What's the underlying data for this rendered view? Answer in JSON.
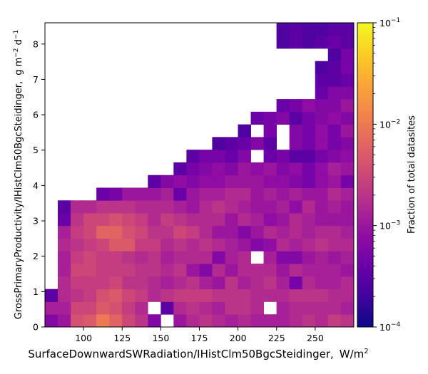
{
  "chart_data": {
    "type": "heatmap",
    "xlabel": "SurfaceDownwardSWRadiation/IHistClm50BgcSteidinger,",
    "xlabel_unit": "W/m",
    "xlabel_unit_sup": "2",
    "ylabel": "GrossPrimaryProductivity/IHistClm50BgcSteidinger,",
    "ylabel_unit": "g m",
    "ylabel_unit_sup1": "−2",
    "ylabel_unit_mid": " d",
    "ylabel_unit_sup2": "−1",
    "colorbar_label": "Fraction of total datasites",
    "colormap": "plasma",
    "color_scale": "log",
    "x_ticks": [
      100,
      125,
      150,
      175,
      200,
      225,
      250
    ],
    "x_tick_labels": [
      "100",
      "125",
      "150",
      "175",
      "200",
      "225",
      "250"
    ],
    "y_ticks": [
      0,
      1,
      2,
      3,
      4,
      5,
      6,
      7,
      8
    ],
    "y_tick_labels": [
      "0",
      "1",
      "2",
      "3",
      "4",
      "5",
      "6",
      "7",
      "8"
    ],
    "colorbar_ticks": [
      {
        "base": "10",
        "exp": "−4"
      },
      {
        "base": "10",
        "exp": "−3"
      },
      {
        "base": "10",
        "exp": "−2"
      },
      {
        "base": "10",
        "exp": "−1"
      }
    ],
    "xlim": [
      75,
      275
    ],
    "ylim": [
      0,
      8.6
    ],
    "clim": [
      0.0001,
      0.1
    ],
    "x_bin_start": 75,
    "x_bin_width": 8.33,
    "y_bin_start": 0,
    "y_bin_height": 0.358,
    "cells_note": "rows listed from bottom (row 0) to top; each value is the log10 of the fraction; null = empty bin",
    "log_values": [
      [
        -3.2,
        -3.0,
        -2.4,
        -2.3,
        -2.0,
        -2.2,
        -2.5,
        -2.7,
        -3.2,
        null,
        -3.0,
        -2.8,
        -2.7,
        -2.8,
        -2.9,
        -2.8,
        -2.9,
        -2.9,
        -2.9,
        -2.8,
        -2.7,
        -2.8,
        -2.6,
        -2.7,
        -2.8,
        -2.8,
        -2.7,
        -2.7,
        -2.8,
        -2.9,
        -2.8,
        -2.9,
        -3.0,
        -3.0,
        -2.8,
        -3.0,
        -3.2,
        -3.2
      ],
      [
        -2.9,
        -2.9,
        -2.5,
        -2.5,
        -2.3,
        -2.4,
        -2.6,
        -2.8,
        null,
        -3.5,
        -2.8,
        -2.7,
        -2.8,
        -2.9,
        -2.7,
        -2.7,
        -2.8,
        null,
        -2.9,
        -2.8,
        -2.8,
        -2.8,
        -2.8,
        -2.9,
        -2.8,
        -2.7,
        -2.7,
        -2.8,
        -2.9,
        -2.8,
        -2.9,
        -2.9,
        -2.9,
        -2.8,
        -2.7,
        -2.9,
        -3.0,
        -3.0
      ],
      [
        -3.5,
        -2.8,
        -2.7,
        -2.6,
        -2.4,
        -2.3,
        -2.5,
        -2.6,
        -2.8,
        -2.7,
        -2.6,
        -2.6,
        -2.6,
        -2.7,
        -2.7,
        -2.7,
        -2.8,
        -2.8,
        -2.8,
        -2.7,
        -2.7,
        -2.7,
        -2.8,
        -2.8,
        -2.8,
        -2.7,
        -2.6,
        -2.6,
        -2.7,
        -2.8,
        -2.8,
        -2.8,
        -2.7,
        -2.6,
        -2.6,
        -2.8,
        -2.9,
        -3.2
      ],
      [
        null,
        -2.8,
        -2.6,
        -2.6,
        -2.6,
        -2.5,
        -2.7,
        -2.7,
        -2.8,
        -2.9,
        -2.8,
        -2.7,
        -2.9,
        -3.0,
        -2.7,
        -2.9,
        -2.8,
        -2.7,
        -2.9,
        -3.3,
        -2.8,
        -2.9,
        -2.9,
        -2.8,
        -2.7,
        -2.8,
        -2.8,
        -2.8,
        -2.6,
        -2.9,
        -2.9,
        -2.7,
        -2.6,
        -2.5,
        -2.6,
        -2.7,
        -2.8,
        -3.0
      ],
      [
        null,
        -2.9,
        -2.5,
        -2.5,
        -2.6,
        -2.6,
        -2.6,
        -2.7,
        -2.7,
        -2.8,
        -2.7,
        -3.0,
        -3.2,
        -2.8,
        -3.0,
        -2.8,
        -2.8,
        -2.8,
        -3.0,
        -2.8,
        -2.9,
        -2.9,
        -2.9,
        -3.0,
        -2.8,
        -2.8,
        -3.0,
        -2.9,
        -2.7,
        -2.8,
        -2.8,
        -2.7,
        -2.6,
        -2.6,
        -2.7,
        -2.8,
        -2.9,
        -3.1
      ],
      [
        null,
        -2.9,
        -2.6,
        -2.5,
        -2.6,
        -2.6,
        -2.7,
        -2.8,
        -2.7,
        -2.9,
        -2.8,
        -2.8,
        -2.8,
        -3.2,
        -2.9,
        -2.8,
        null,
        -2.9,
        -3.2,
        -3.2,
        -3.0,
        -2.9,
        -3.0,
        -2.9,
        -2.8,
        -2.8,
        -2.7,
        -2.8,
        -2.9,
        -3.0,
        -2.7,
        -2.8,
        -2.7,
        -2.6,
        -2.7,
        -2.8,
        -3.0,
        -3.3
      ],
      [
        null,
        -2.8,
        -2.7,
        -2.6,
        -2.5,
        -2.3,
        -2.3,
        -2.6,
        -2.6,
        -2.8,
        -2.7,
        -2.8,
        -2.7,
        -2.8,
        -2.9,
        -3.0,
        -3.2,
        -3.1,
        -2.8,
        -2.9,
        -2.8,
        -2.7,
        -2.8,
        -2.8,
        -2.9,
        -2.8,
        -2.7,
        -2.7,
        -2.8,
        -2.8,
        -2.9,
        -2.8,
        -2.8,
        -2.7,
        -2.8,
        -2.9,
        -3.1,
        null
      ],
      [
        null,
        -2.9,
        -2.6,
        -2.5,
        -2.2,
        -2.2,
        -2.4,
        -2.5,
        -2.7,
        -2.7,
        -2.5,
        -2.6,
        -2.8,
        -3.0,
        -3.0,
        -3.2,
        -3.0,
        -2.8,
        -2.9,
        -2.8,
        -2.9,
        -2.8,
        -2.8,
        -2.9,
        -2.9,
        -3.0,
        -2.7,
        -2.8,
        -2.8,
        -2.9,
        -2.9,
        -2.9,
        -2.8,
        -2.8,
        -3.0,
        -3.2,
        -3.3,
        null
      ],
      [
        null,
        -3.4,
        -2.7,
        -2.5,
        -2.5,
        -2.4,
        -2.5,
        -2.6,
        -2.8,
        -2.6,
        -2.7,
        -2.8,
        -2.8,
        -2.8,
        -3.0,
        -2.8,
        -2.9,
        -3.1,
        -3.0,
        -2.8,
        -2.9,
        -3.0,
        -3.0,
        -3.0,
        -3.0,
        -2.9,
        -3.0,
        -3.0,
        -3.3,
        -2.8,
        -2.9,
        -2.9,
        -2.9,
        -3.0,
        -3.2,
        -3.5,
        null,
        null
      ],
      [
        null,
        -3.5,
        -2.8,
        -2.8,
        -2.7,
        -2.7,
        -2.7,
        -2.8,
        -2.8,
        -2.8,
        -2.9,
        -3.0,
        -2.8,
        -2.7,
        -2.8,
        -2.9,
        -3.0,
        -3.0,
        -2.9,
        -3.1,
        -2.8,
        -3.0,
        -2.9,
        -3.0,
        -3.0,
        -2.9,
        -2.8,
        -2.8,
        -2.8,
        -3.0,
        -2.9,
        -2.8,
        -3.0,
        -3.4,
        -3.0,
        -3.2,
        null,
        null
      ],
      [
        null,
        null,
        null,
        null,
        -3.4,
        -3.3,
        -3.0,
        -3.0,
        -3.0,
        -2.9,
        -3.4,
        -3.0,
        -2.9,
        -2.9,
        -2.8,
        -2.8,
        -3.0,
        -2.9,
        -3.0,
        -2.9,
        -3.0,
        -3.0,
        -2.8,
        -2.9,
        -2.9,
        -2.9,
        -2.8,
        -3.0,
        -2.9,
        -2.8,
        -2.9,
        -3.1,
        -3.0,
        -3.3,
        -3.3,
        -3.5,
        -3.2,
        null
      ],
      [
        null,
        null,
        null,
        null,
        null,
        null,
        null,
        null,
        -3.5,
        -3.2,
        -3.1,
        -3.2,
        -3.1,
        -3.1,
        -3.0,
        -3.0,
        -3.0,
        -3.1,
        -3.1,
        -3.2,
        -3.3,
        -3.1,
        -3.0,
        -3.3,
        -3.0,
        -3.2,
        -3.1,
        -3.1,
        -3.2,
        -3.5,
        -3.3,
        -3.2,
        -3.3,
        -3.5,
        -3.3,
        null,
        null,
        null
      ],
      [
        null,
        null,
        null,
        null,
        null,
        null,
        null,
        null,
        null,
        null,
        -3.5,
        -3.3,
        -3.2,
        -3.1,
        -3.2,
        -3.0,
        -3.1,
        -3.0,
        -3.2,
        -3.1,
        -3.3,
        -3.1,
        -2.9,
        -3.0,
        null,
        -3.2,
        -3.0,
        -3.1,
        -3.0,
        -3.1,
        -3.2,
        -3.4,
        -3.3,
        null,
        null,
        null,
        null,
        null
      ],
      [
        null,
        null,
        null,
        null,
        null,
        null,
        null,
        null,
        null,
        null,
        null,
        -3.5,
        -3.3,
        -3.3,
        -3.4,
        -3.2,
        null,
        -3.4,
        -3.3,
        -3.5,
        -3.5,
        -3.3,
        -3.2,
        -3.1,
        -3.3,
        -3.1,
        -3.2,
        -3.1,
        -3.2,
        -3.3,
        -3.4,
        -3.3,
        -3.5,
        -3.3,
        null,
        -3.5,
        null,
        null
      ],
      [
        null,
        null,
        null,
        null,
        null,
        null,
        null,
        null,
        null,
        null,
        null,
        null,
        null,
        -3.6,
        -3.5,
        -3.4,
        -3.2,
        -3.5,
        null,
        -3.2,
        -3.3,
        -3.1,
        -3.3,
        -3.2,
        -3.1,
        -3.0,
        -3.1,
        -3.2,
        -3.2,
        -3.4,
        -3.2,
        -3.4,
        -3.3,
        null,
        -3.5,
        -3.5,
        null,
        null
      ],
      [
        null,
        null,
        null,
        null,
        null,
        null,
        null,
        null,
        null,
        null,
        null,
        null,
        null,
        null,
        null,
        -3.6,
        null,
        -3.3,
        null,
        -3.2,
        -3.3,
        -3.1,
        -3.3,
        -3.0,
        -3.1,
        -3.1,
        -3.2,
        -3.0,
        -3.0,
        -3.2,
        -3.2,
        -3.2,
        -3.4,
        -3.5,
        null,
        null,
        null,
        null
      ],
      [
        null,
        null,
        null,
        null,
        null,
        null,
        null,
        null,
        null,
        null,
        null,
        null,
        null,
        null,
        null,
        null,
        -3.4,
        -3.3,
        -3.2,
        -3.5,
        -3.3,
        -3.2,
        -3.1,
        -3.2,
        -3.2,
        -3.0,
        -3.1,
        -3.1,
        -3.2,
        -3.3,
        -3.4,
        null,
        -3.3,
        null,
        null,
        null,
        null,
        null
      ],
      [
        null,
        null,
        null,
        null,
        null,
        null,
        null,
        null,
        null,
        null,
        null,
        null,
        null,
        null,
        null,
        null,
        null,
        null,
        -3.4,
        -3.3,
        -3.1,
        -3.2,
        -3.2,
        -3.0,
        -3.1,
        -3.2,
        -3.3,
        -3.3,
        -3.4,
        -3.5,
        -3.5,
        null,
        null,
        null,
        null,
        null,
        null,
        null
      ],
      [
        null,
        null,
        null,
        null,
        null,
        null,
        null,
        null,
        null,
        null,
        null,
        null,
        null,
        null,
        null,
        null,
        null,
        null,
        null,
        null,
        null,
        -3.4,
        -3.2,
        -3.2,
        -3.1,
        -3.2,
        -3.2,
        -3.3,
        -3.4,
        -3.3,
        -3.3,
        -3.5,
        null,
        null,
        null,
        null,
        null,
        null
      ],
      [
        null,
        null,
        null,
        null,
        null,
        null,
        null,
        null,
        null,
        null,
        null,
        null,
        null,
        null,
        null,
        null,
        null,
        null,
        null,
        null,
        null,
        -3.5,
        -3.5,
        -3.4,
        -3.5,
        -3.3,
        -3.2,
        -3.3,
        -3.2,
        -3.5,
        -3.4,
        -3.6,
        -3.7,
        null,
        null,
        null,
        null,
        null
      ],
      [
        null,
        null,
        null,
        null,
        null,
        null,
        null,
        null,
        null,
        null,
        null,
        null,
        null,
        null,
        null,
        null,
        null,
        null,
        null,
        null,
        null,
        -3.6,
        -3.5,
        -3.3,
        -3.6,
        -3.2,
        -3.3,
        -3.2,
        -3.3,
        -3.5,
        -3.3,
        -3.4,
        -3.5,
        null,
        null,
        null,
        null,
        null
      ],
      [
        null,
        null,
        null,
        null,
        null,
        null,
        null,
        null,
        null,
        null,
        null,
        null,
        null,
        null,
        null,
        null,
        null,
        null,
        null,
        null,
        null,
        null,
        -3.6,
        -3.3,
        -3.5,
        -3.3,
        -3.3,
        -3.2,
        -3.2,
        -3.3,
        -3.5,
        -3.3,
        null,
        null,
        null,
        null,
        null,
        null
      ],
      [
        null,
        null,
        null,
        null,
        null,
        null,
        null,
        null,
        null,
        null,
        null,
        null,
        null,
        null,
        null,
        null,
        null,
        null,
        -3.6,
        -3.5,
        -3.6,
        -3.5,
        -3.4,
        -3.5,
        -3.3,
        -3.2,
        -3.3,
        -3.2,
        -3.5,
        -3.4,
        -3.4,
        -3.5,
        -3.4,
        null,
        null,
        null,
        null,
        null
      ],
      [
        null,
        null,
        null,
        null,
        null,
        null,
        null,
        null,
        null,
        null,
        null,
        null,
        null,
        null,
        null,
        null,
        null,
        null,
        -3.6,
        -3.5,
        -3.6,
        -3.6,
        -3.5,
        -3.5,
        -3.6,
        -3.6,
        -3.5,
        -3.5,
        null,
        -3.5,
        -3.5,
        null,
        null,
        null,
        null,
        null,
        null,
        null
      ]
    ]
  }
}
